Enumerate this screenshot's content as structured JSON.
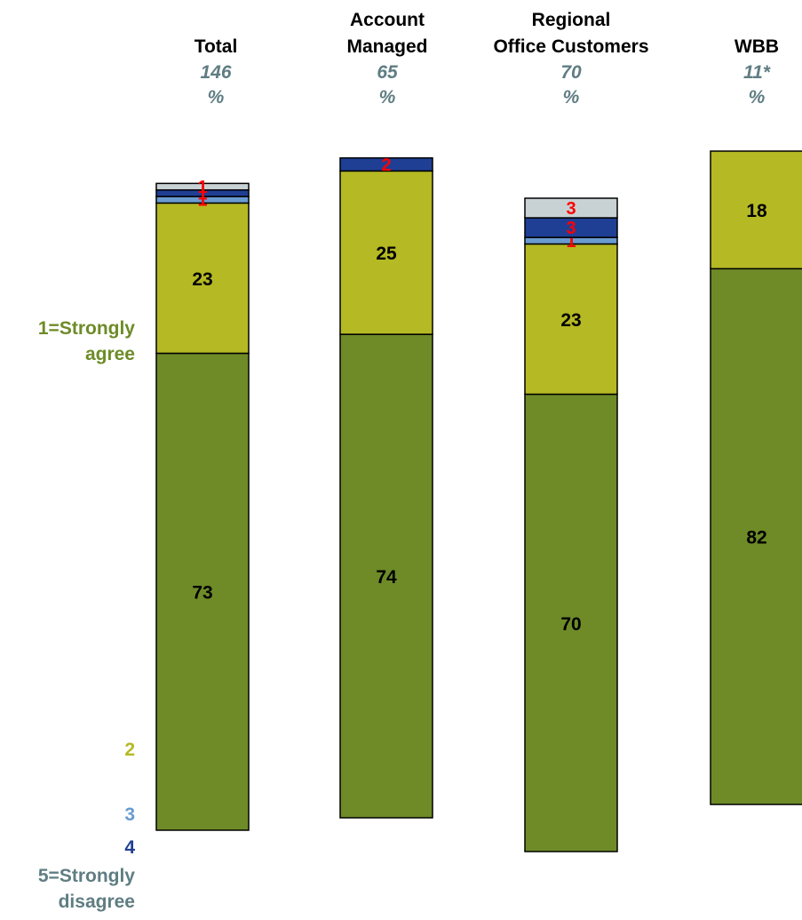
{
  "chart_data": {
    "type": "bar",
    "stacked": true,
    "orientation": "vertical",
    "categories": [
      "Total",
      "Account Managed",
      "Regional Office Customers",
      "WBB"
    ],
    "category_labels": [
      [
        "Total"
      ],
      [
        "Account",
        "Managed"
      ],
      [
        "Regional",
        "Office Customers"
      ],
      [
        "WBB"
      ]
    ],
    "bases": [
      "146",
      "65",
      "70",
      "11*"
    ],
    "unit": "%",
    "series": [
      {
        "name": "1=Strongly agree",
        "color": "#6e8b27",
        "values": [
          73,
          74,
          70,
          82
        ]
      },
      {
        "name": "2",
        "color": "#b5b923",
        "values": [
          23,
          25,
          23,
          18
        ]
      },
      {
        "name": "3",
        "color": "#6a9bd0",
        "values": [
          1,
          0,
          1,
          0
        ]
      },
      {
        "name": "4",
        "color": "#1f3f94",
        "values": [
          1,
          2,
          3,
          0
        ]
      },
      {
        "name": "5=Strongly disagree",
        "color": "#c8d2d4",
        "values": [
          1,
          0,
          3,
          0
        ]
      }
    ],
    "series_text_colors": [
      "#6e8b27",
      "#b5b923",
      "#6a9bd0",
      "#1f3f94",
      "#5f7d83"
    ],
    "label_colors": {
      "large": "#000000",
      "small": "#ff0000"
    },
    "legend_position": "left",
    "ylim": [
      0,
      100
    ],
    "grid": false
  }
}
